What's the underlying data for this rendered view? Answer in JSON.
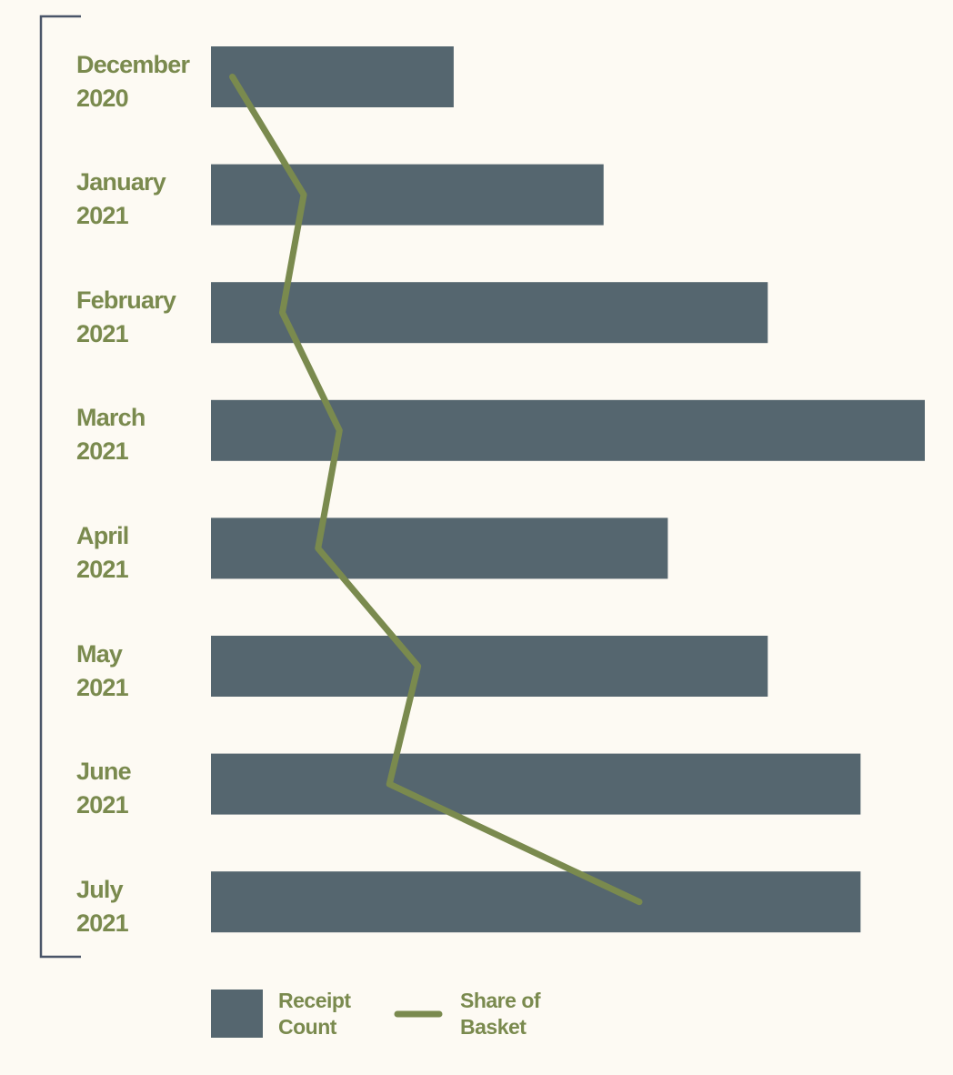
{
  "chart_data": {
    "type": "bar",
    "orientation": "horizontal",
    "categories": [
      "December 2020",
      "January 2021",
      "February 2021",
      "March 2021",
      "April 2021",
      "May 2021",
      "June 2021",
      "July 2021"
    ],
    "series": [
      {
        "name": "Receipt Count",
        "type": "bar",
        "color": "#55666f",
        "values": [
          34,
          55,
          78,
          100,
          64,
          78,
          91,
          91
        ]
      },
      {
        "name": "Share of Basket",
        "type": "line",
        "color": "#7a8a4e",
        "axis": "x2",
        "values": [
          3,
          13,
          10,
          18,
          15,
          29,
          25,
          60
        ]
      }
    ],
    "xlim": [
      0,
      100
    ],
    "x2lim": [
      0,
      100
    ],
    "legend": "bottom"
  }
}
